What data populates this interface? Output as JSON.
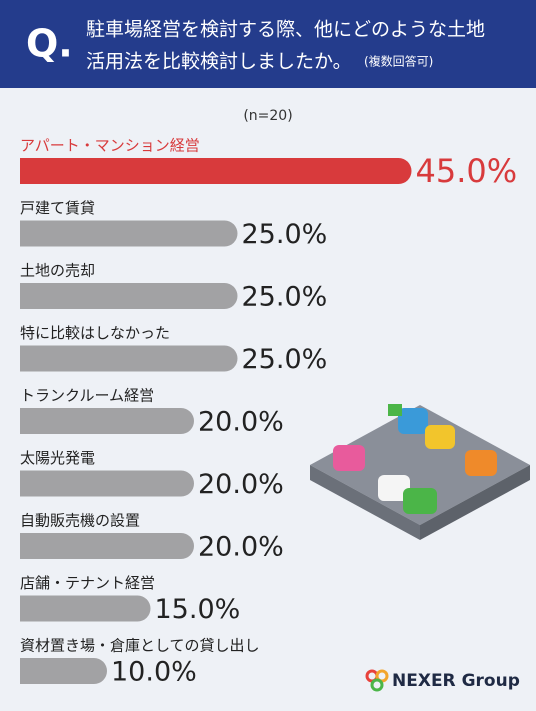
{
  "chart_data": {
    "type": "bar",
    "badge": "Q.",
    "title": "駐車場経営を検討する際、他にどのような土地",
    "title_line2": "活用法を比較検討しましたか。",
    "subtitle": "(複数回答可)",
    "note": "(n=20)",
    "categories": [
      "アパート・マンション経営",
      "戸建て賃貸",
      "土地の売却",
      "特に比較はしなかった",
      "トランクルーム経営",
      "太陽光発電",
      "自動販売機の設置",
      "店舗・テナント経営",
      "資材置き場・倉庫としての貸し出し"
    ],
    "values": [
      45.0,
      25.0,
      25.0,
      25.0,
      20.0,
      20.0,
      20.0,
      15.0,
      10.0
    ],
    "value_labels": [
      "45.0%",
      "25.0%",
      "25.0%",
      "25.0%",
      "20.0%",
      "20.0%",
      "20.0%",
      "15.0%",
      "10.0%"
    ],
    "colors": [
      "#d83a3c",
      "#a2a2a4",
      "#a2a2a4",
      "#a2a2a4",
      "#a2a2a4",
      "#a2a2a4",
      "#a2a2a4",
      "#a2a2a4",
      "#a2a2a4"
    ],
    "logo": "NEXER Group"
  }
}
